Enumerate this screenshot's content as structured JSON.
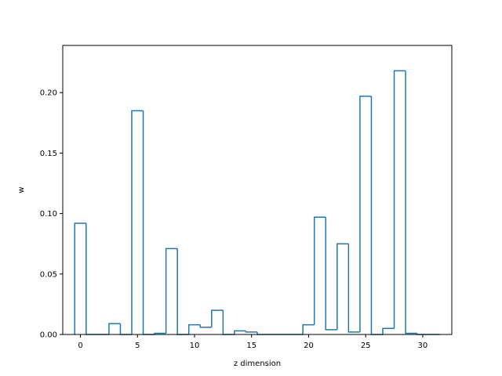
{
  "chart_data": {
    "type": "bar",
    "style": "step-histogram",
    "xlabel": "z dimension",
    "ylabel": "w",
    "xlim": [
      -1.55,
      32.55
    ],
    "ylim": [
      0,
      0.239
    ],
    "grid": false,
    "x": [
      0,
      1,
      2,
      3,
      4,
      5,
      6,
      7,
      8,
      9,
      10,
      11,
      12,
      13,
      14,
      15,
      16,
      17,
      18,
      19,
      20,
      21,
      22,
      23,
      24,
      25,
      26,
      27,
      28,
      29,
      30,
      31
    ],
    "values": [
      0.092,
      0.0,
      0.0,
      0.009,
      0.0,
      0.185,
      0.0,
      0.001,
      0.071,
      0.0,
      0.008,
      0.006,
      0.02,
      0.0,
      0.003,
      0.002,
      0.0,
      0.0,
      0.0,
      0.0,
      0.008,
      0.097,
      0.004,
      0.075,
      0.002,
      0.197,
      0.0,
      0.005,
      0.218,
      0.001,
      0.0,
      0.0
    ],
    "xticks": [
      0,
      5,
      10,
      15,
      20,
      25,
      30
    ],
    "yticks": [
      0.0,
      0.05,
      0.1,
      0.15,
      0.2
    ],
    "ytick_labels": [
      "0.00",
      "0.05",
      "0.10",
      "0.15",
      "0.20"
    ],
    "series_color": "#1f77b4"
  }
}
